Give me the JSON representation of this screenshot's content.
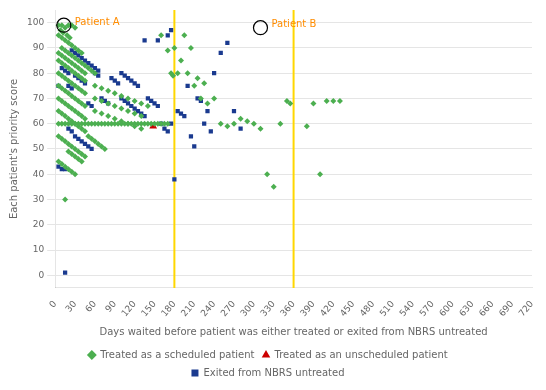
{
  "chart_data": {
    "type": "scatter",
    "xlabel": "Days waited before patient was either treated or exited from NBRS untreated",
    "ylabel": "Each patient's priority score",
    "xlim": [
      0,
      720
    ],
    "ylim": [
      -5,
      105
    ],
    "xticks": [
      0,
      30,
      60,
      90,
      120,
      150,
      180,
      210,
      240,
      270,
      300,
      330,
      360,
      390,
      420,
      450,
      480,
      510,
      540,
      570,
      600,
      630,
      660,
      690,
      720
    ],
    "yticks": [
      0,
      10,
      20,
      30,
      40,
      50,
      60,
      70,
      80,
      90,
      100
    ],
    "grid": "y",
    "legend": "bottom",
    "series": [
      {
        "name": "Treated as a scheduled patient",
        "color": "#4CAF50",
        "marker": "diamond",
        "values": [
          [
            5,
            99
          ],
          [
            10,
            99
          ],
          [
            15,
            98
          ],
          [
            20,
            99
          ],
          [
            25,
            99
          ],
          [
            8,
            97
          ],
          [
            12,
            96
          ],
          [
            18,
            95
          ],
          [
            22,
            94
          ],
          [
            30,
            98
          ],
          [
            5,
            95
          ],
          [
            10,
            94
          ],
          [
            15,
            93
          ],
          [
            20,
            92
          ],
          [
            25,
            91
          ],
          [
            30,
            90
          ],
          [
            35,
            89
          ],
          [
            40,
            88
          ],
          [
            10,
            90
          ],
          [
            15,
            89
          ],
          [
            20,
            88
          ],
          [
            25,
            87
          ],
          [
            30,
            86
          ],
          [
            35,
            85
          ],
          [
            40,
            84
          ],
          [
            45,
            83
          ],
          [
            50,
            82
          ],
          [
            55,
            81
          ],
          [
            60,
            80
          ],
          [
            5,
            88
          ],
          [
            10,
            87
          ],
          [
            15,
            86
          ],
          [
            20,
            85
          ],
          [
            25,
            84
          ],
          [
            30,
            83
          ],
          [
            35,
            82
          ],
          [
            40,
            81
          ],
          [
            45,
            80
          ],
          [
            5,
            85
          ],
          [
            10,
            84
          ],
          [
            15,
            83
          ],
          [
            20,
            82
          ],
          [
            25,
            81
          ],
          [
            30,
            80
          ],
          [
            35,
            79
          ],
          [
            40,
            78
          ],
          [
            45,
            77
          ],
          [
            5,
            80
          ],
          [
            10,
            79
          ],
          [
            15,
            78
          ],
          [
            20,
            77
          ],
          [
            25,
            76
          ],
          [
            30,
            75
          ],
          [
            35,
            74
          ],
          [
            40,
            73
          ],
          [
            45,
            72
          ],
          [
            5,
            75
          ],
          [
            10,
            74
          ],
          [
            15,
            73
          ],
          [
            20,
            72
          ],
          [
            25,
            71
          ],
          [
            30,
            70
          ],
          [
            35,
            69
          ],
          [
            40,
            68
          ],
          [
            45,
            67
          ],
          [
            5,
            70
          ],
          [
            10,
            69
          ],
          [
            15,
            68
          ],
          [
            20,
            67
          ],
          [
            25,
            66
          ],
          [
            30,
            65
          ],
          [
            35,
            64
          ],
          [
            40,
            63
          ],
          [
            45,
            62
          ],
          [
            5,
            65
          ],
          [
            10,
            64
          ],
          [
            15,
            63
          ],
          [
            20,
            62
          ],
          [
            25,
            61
          ],
          [
            30,
            60
          ],
          [
            35,
            59
          ],
          [
            40,
            58
          ],
          [
            45,
            57
          ],
          [
            5,
            60
          ],
          [
            10,
            60
          ],
          [
            15,
            60
          ],
          [
            20,
            60
          ],
          [
            25,
            60
          ],
          [
            30,
            60
          ],
          [
            35,
            60
          ],
          [
            40,
            60
          ],
          [
            45,
            60
          ],
          [
            50,
            60
          ],
          [
            55,
            60
          ],
          [
            60,
            60
          ],
          [
            65,
            60
          ],
          [
            70,
            60
          ],
          [
            75,
            60
          ],
          [
            80,
            60
          ],
          [
            85,
            60
          ],
          [
            90,
            60
          ],
          [
            95,
            60
          ],
          [
            100,
            60
          ],
          [
            105,
            60
          ],
          [
            110,
            60
          ],
          [
            115,
            60
          ],
          [
            120,
            60
          ],
          [
            125,
            60
          ],
          [
            130,
            60
          ],
          [
            135,
            60
          ],
          [
            140,
            60
          ],
          [
            145,
            60
          ],
          [
            150,
            60
          ],
          [
            155,
            60
          ],
          [
            160,
            60
          ],
          [
            165,
            60
          ],
          [
            170,
            60
          ],
          [
            5,
            55
          ],
          [
            10,
            54
          ],
          [
            15,
            53
          ],
          [
            20,
            52
          ],
          [
            25,
            51
          ],
          [
            30,
            50
          ],
          [
            35,
            49
          ],
          [
            40,
            48
          ],
          [
            45,
            47
          ],
          [
            50,
            55
          ],
          [
            55,
            54
          ],
          [
            60,
            53
          ],
          [
            65,
            52
          ],
          [
            70,
            51
          ],
          [
            75,
            50
          ],
          [
            5,
            45
          ],
          [
            10,
            44
          ],
          [
            15,
            43
          ],
          [
            20,
            42
          ],
          [
            25,
            41
          ],
          [
            30,
            40
          ],
          [
            15,
            30
          ],
          [
            20,
            49
          ],
          [
            25,
            48
          ],
          [
            30,
            47
          ],
          [
            35,
            46
          ],
          [
            40,
            45
          ],
          [
            60,
            75
          ],
          [
            70,
            74
          ],
          [
            80,
            73
          ],
          [
            90,
            72
          ],
          [
            100,
            71
          ],
          [
            110,
            70
          ],
          [
            120,
            69
          ],
          [
            130,
            68
          ],
          [
            140,
            67
          ],
          [
            60,
            65
          ],
          [
            70,
            64
          ],
          [
            80,
            63
          ],
          [
            90,
            62
          ],
          [
            100,
            61
          ],
          [
            110,
            60
          ],
          [
            120,
            59
          ],
          [
            130,
            58
          ],
          [
            60,
            70
          ],
          [
            70,
            69
          ],
          [
            80,
            68
          ],
          [
            90,
            67
          ],
          [
            100,
            66
          ],
          [
            110,
            65
          ],
          [
            120,
            64
          ],
          [
            130,
            63
          ],
          [
            180,
            90
          ],
          [
            190,
            85
          ],
          [
            200,
            80
          ],
          [
            210,
            75
          ],
          [
            220,
            70
          ],
          [
            195,
            95
          ],
          [
            205,
            90
          ],
          [
            185,
            80
          ],
          [
            215,
            78
          ],
          [
            225,
            76
          ],
          [
            230,
            68
          ],
          [
            240,
            70
          ],
          [
            250,
            60
          ],
          [
            260,
            59
          ],
          [
            270,
            60
          ],
          [
            280,
            62
          ],
          [
            290,
            61
          ],
          [
            300,
            60
          ],
          [
            310,
            58
          ],
          [
            320,
            40
          ],
          [
            330,
            35
          ],
          [
            340,
            60
          ],
          [
            350,
            69
          ],
          [
            355,
            68
          ],
          [
            380,
            59
          ],
          [
            400,
            40
          ],
          [
            410,
            69
          ],
          [
            420,
            69
          ],
          [
            430,
            69
          ],
          [
            390,
            68
          ],
          [
            160,
            95
          ],
          [
            170,
            89
          ],
          [
            175,
            80
          ],
          [
            178,
            79
          ]
        ]
      },
      {
        "name": "Treated as an unscheduled patient",
        "color": "#CC0000",
        "marker": "triangle",
        "values": [
          [
            148,
            59
          ]
        ]
      },
      {
        "name": "Exited from NBRS untreated",
        "color": "#1a3a8f",
        "marker": "square",
        "values": [
          [
            15,
            1
          ],
          [
            20,
            58
          ],
          [
            25,
            57
          ],
          [
            30,
            55
          ],
          [
            35,
            54
          ],
          [
            40,
            53
          ],
          [
            45,
            52
          ],
          [
            50,
            51
          ],
          [
            55,
            50
          ],
          [
            5,
            43
          ],
          [
            10,
            42
          ],
          [
            15,
            42
          ],
          [
            20,
            75
          ],
          [
            25,
            74
          ],
          [
            30,
            79
          ],
          [
            35,
            78
          ],
          [
            40,
            77
          ],
          [
            45,
            76
          ],
          [
            50,
            68
          ],
          [
            55,
            67
          ],
          [
            60,
            80
          ],
          [
            65,
            79
          ],
          [
            70,
            70
          ],
          [
            75,
            69
          ],
          [
            80,
            68
          ],
          [
            85,
            78
          ],
          [
            90,
            77
          ],
          [
            95,
            76
          ],
          [
            100,
            70
          ],
          [
            105,
            69
          ],
          [
            110,
            68
          ],
          [
            115,
            67
          ],
          [
            120,
            66
          ],
          [
            125,
            65
          ],
          [
            130,
            64
          ],
          [
            135,
            63
          ],
          [
            100,
            80
          ],
          [
            105,
            79
          ],
          [
            110,
            78
          ],
          [
            115,
            77
          ],
          [
            120,
            76
          ],
          [
            125,
            75
          ],
          [
            140,
            70
          ],
          [
            145,
            69
          ],
          [
            150,
            68
          ],
          [
            155,
            67
          ],
          [
            160,
            60
          ],
          [
            165,
            58
          ],
          [
            170,
            57
          ],
          [
            175,
            60
          ],
          [
            180,
            38
          ],
          [
            185,
            65
          ],
          [
            190,
            64
          ],
          [
            195,
            63
          ],
          [
            200,
            75
          ],
          [
            205,
            55
          ],
          [
            210,
            51
          ],
          [
            215,
            70
          ],
          [
            220,
            69
          ],
          [
            225,
            60
          ],
          [
            230,
            65
          ],
          [
            235,
            57
          ],
          [
            240,
            80
          ],
          [
            250,
            88
          ],
          [
            260,
            92
          ],
          [
            270,
            65
          ],
          [
            280,
            58
          ],
          [
            170,
            95
          ],
          [
            175,
            97
          ],
          [
            155,
            93
          ],
          [
            135,
            93
          ],
          [
            25,
            89
          ],
          [
            30,
            88
          ],
          [
            35,
            87
          ],
          [
            40,
            86
          ],
          [
            45,
            85
          ],
          [
            50,
            84
          ],
          [
            55,
            83
          ],
          [
            60,
            82
          ],
          [
            65,
            81
          ],
          [
            10,
            82
          ],
          [
            15,
            81
          ],
          [
            20,
            80
          ],
          [
            5,
            75
          ]
        ]
      }
    ],
    "annotations": [
      {
        "type": "vline",
        "x": 180,
        "color": "#FFD700"
      },
      {
        "type": "vline",
        "x": 360,
        "color": "#FFD700"
      },
      {
        "type": "circle",
        "x": 13,
        "y": 99,
        "text": "Patient A",
        "color": "#FF8C00"
      },
      {
        "type": "circle",
        "x": 310,
        "y": 98,
        "text": "Patient B",
        "color": "#FF8C00"
      }
    ]
  }
}
